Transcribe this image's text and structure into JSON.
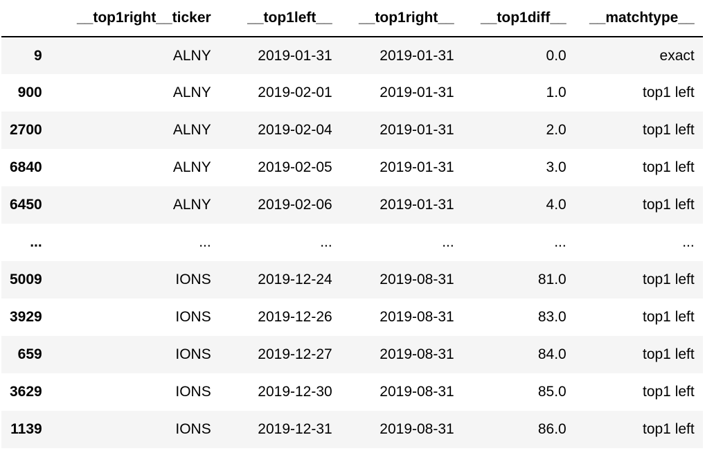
{
  "table": {
    "columns": [
      "",
      "__top1right__ticker",
      "__top1left__",
      "__top1right__",
      "__top1diff__",
      "__matchtype__"
    ],
    "rows": [
      {
        "index": "9",
        "ticker": "ALNY",
        "left": "2019-01-31",
        "right": "2019-01-31",
        "diff": "0.0",
        "matchtype": "exact"
      },
      {
        "index": "900",
        "ticker": "ALNY",
        "left": "2019-02-01",
        "right": "2019-01-31",
        "diff": "1.0",
        "matchtype": "top1 left"
      },
      {
        "index": "2700",
        "ticker": "ALNY",
        "left": "2019-02-04",
        "right": "2019-01-31",
        "diff": "2.0",
        "matchtype": "top1 left"
      },
      {
        "index": "6840",
        "ticker": "ALNY",
        "left": "2019-02-05",
        "right": "2019-01-31",
        "diff": "3.0",
        "matchtype": "top1 left"
      },
      {
        "index": "6450",
        "ticker": "ALNY",
        "left": "2019-02-06",
        "right": "2019-01-31",
        "diff": "4.0",
        "matchtype": "top1 left"
      },
      {
        "index": "...",
        "ticker": "...",
        "left": "...",
        "right": "...",
        "diff": "...",
        "matchtype": "..."
      },
      {
        "index": "5009",
        "ticker": "IONS",
        "left": "2019-12-24",
        "right": "2019-08-31",
        "diff": "81.0",
        "matchtype": "top1 left"
      },
      {
        "index": "3929",
        "ticker": "IONS",
        "left": "2019-12-26",
        "right": "2019-08-31",
        "diff": "83.0",
        "matchtype": "top1 left"
      },
      {
        "index": "659",
        "ticker": "IONS",
        "left": "2019-12-27",
        "right": "2019-08-31",
        "diff": "84.0",
        "matchtype": "top1 left"
      },
      {
        "index": "3629",
        "ticker": "IONS",
        "left": "2019-12-30",
        "right": "2019-08-31",
        "diff": "85.0",
        "matchtype": "top1 left"
      },
      {
        "index": "1139",
        "ticker": "IONS",
        "left": "2019-12-31",
        "right": "2019-08-31",
        "diff": "86.0",
        "matchtype": "top1 left"
      }
    ]
  },
  "colors": {
    "striped_row": "#f5f5f5",
    "header_rule": "#000000"
  }
}
